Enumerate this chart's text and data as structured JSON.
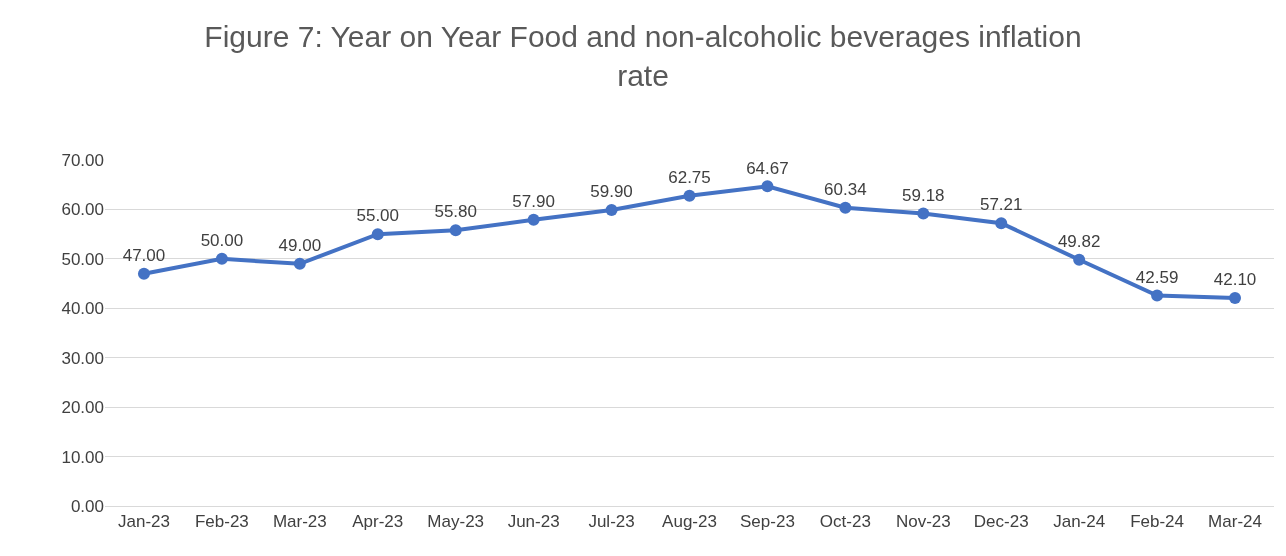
{
  "chart_data": {
    "type": "line",
    "title": "Figure 7: Year on Year Food and non-alcoholic beverages inflation rate",
    "categories": [
      "Jan-23",
      "Feb-23",
      "Mar-23",
      "Apr-23",
      "May-23",
      "Jun-23",
      "Jul-23",
      "Aug-23",
      "Sep-23",
      "Oct-23",
      "Nov-23",
      "Dec-23",
      "Jan-24",
      "Feb-24",
      "Mar-24"
    ],
    "series": [
      {
        "color": "#4472c4",
        "values": [
          47.0,
          50.0,
          49.0,
          55.0,
          55.8,
          57.9,
          59.9,
          62.75,
          64.67,
          60.34,
          59.18,
          57.21,
          49.82,
          42.59,
          42.1
        ],
        "value_labels": [
          "47.00",
          "50.00",
          "49.00",
          "55.00",
          "55.80",
          "57.90",
          "59.90",
          "62.75",
          "64.67",
          "60.34",
          "59.18",
          "57.21",
          "49.82",
          "42.59",
          "42.10"
        ]
      }
    ],
    "ylim": [
      0,
      70
    ],
    "yticks": [
      {
        "value": 0,
        "label": "0.00"
      },
      {
        "value": 10,
        "label": "10.00"
      },
      {
        "value": 20,
        "label": "20.00"
      },
      {
        "value": 30,
        "label": "30.00"
      },
      {
        "value": 40,
        "label": "40.00"
      },
      {
        "value": 50,
        "label": "50.00"
      },
      {
        "value": 60,
        "label": "60.00"
      },
      {
        "value": 70,
        "label": "70.00"
      }
    ],
    "grid": "y",
    "marker": "circle",
    "line_style": "solid"
  }
}
